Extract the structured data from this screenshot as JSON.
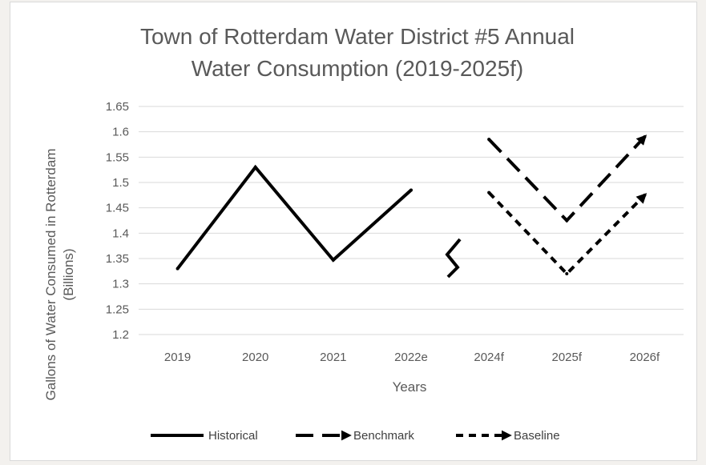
{
  "chart_data": {
    "type": "line",
    "title_lines": [
      "Town of Rotterdam Water District #5 Annual",
      "Water Consumption (2019-2025f)"
    ],
    "xlabel": "Years",
    "ylabel_lines": [
      "Gallons of Water Consumed in Rotterdam",
      "(Billions)"
    ],
    "categories": [
      "2019",
      "2020",
      "2021",
      "2022e",
      "2024f",
      "2025f",
      "2026f"
    ],
    "y_ticks": [
      "1.2",
      "1.25",
      "1.3",
      "1.35",
      "1.4",
      "1.45",
      "1.5",
      "1.55",
      "1.6",
      "1.65"
    ],
    "ylim": [
      1.2,
      1.65
    ],
    "grid": true,
    "legend_position": "bottom",
    "series": [
      {
        "name": "Historical",
        "style": "solid",
        "arrow": false,
        "x": [
          "2019",
          "2020",
          "2021",
          "2022e"
        ],
        "values": [
          1.33,
          1.53,
          1.347,
          1.485
        ]
      },
      {
        "name": "Benchmark",
        "style": "long-dash",
        "arrow": true,
        "x": [
          "2024f",
          "2025f",
          "2026f"
        ],
        "values": [
          1.585,
          1.425,
          1.59
        ]
      },
      {
        "name": "Baseline",
        "style": "short-dash",
        "arrow": true,
        "x": [
          "2024f",
          "2025f",
          "2026f"
        ],
        "values": [
          1.48,
          1.32,
          1.475
        ]
      }
    ],
    "line_color": "#000000",
    "grid_color": "#d9d9d9",
    "text_color": "#595959"
  }
}
